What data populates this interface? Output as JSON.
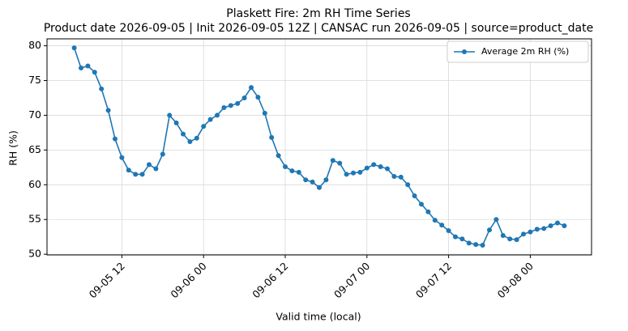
{
  "chart_data": {
    "type": "line",
    "title": "Plaskett Fire: 2m RH Time Series",
    "subtitle": "Product date 2026-09-05 | Init 2026-09-05 12Z | CANSAC run 2026-09-05 | source=product_date",
    "x_label": "Valid time (local)",
    "y_label": "RH (%)",
    "x": [
      "09-05 05",
      "09-05 06",
      "09-05 07",
      "09-05 08",
      "09-05 09",
      "09-05 10",
      "09-05 11",
      "09-05 12",
      "09-05 13",
      "09-05 14",
      "09-05 15",
      "09-05 16",
      "09-05 17",
      "09-05 18",
      "09-05 19",
      "09-05 20",
      "09-05 21",
      "09-05 22",
      "09-05 23",
      "09-06 00",
      "09-06 01",
      "09-06 02",
      "09-06 03",
      "09-06 04",
      "09-06 05",
      "09-06 06",
      "09-06 07",
      "09-06 08",
      "09-06 09",
      "09-06 10",
      "09-06 11",
      "09-06 12",
      "09-06 13",
      "09-06 14",
      "09-06 15",
      "09-06 16",
      "09-06 17",
      "09-06 18",
      "09-06 19",
      "09-06 20",
      "09-06 21",
      "09-06 22",
      "09-06 23",
      "09-07 00",
      "09-07 01",
      "09-07 02",
      "09-07 03",
      "09-07 04",
      "09-07 05",
      "09-07 06",
      "09-07 07",
      "09-07 08",
      "09-07 09",
      "09-07 10",
      "09-07 11",
      "09-07 12",
      "09-07 13",
      "09-07 14",
      "09-07 15",
      "09-07 16",
      "09-07 17",
      "09-07 18",
      "09-07 19",
      "09-07 20",
      "09-07 21",
      "09-07 22",
      "09-07 23",
      "09-08 00",
      "09-08 01",
      "09-08 02",
      "09-08 03",
      "09-08 04",
      "09-08 05"
    ],
    "series": [
      {
        "name": "Average 2m RH (%)",
        "color": "#1f77b4",
        "values": [
          79.7,
          76.8,
          77.1,
          76.2,
          73.8,
          70.7,
          66.6,
          63.9,
          62.1,
          61.5,
          61.5,
          62.9,
          62.3,
          64.4,
          70.0,
          68.9,
          67.3,
          66.2,
          66.7,
          68.4,
          69.4,
          70.0,
          71.1,
          71.4,
          71.7,
          72.5,
          74.0,
          72.6,
          70.3,
          66.8,
          64.2,
          62.6,
          62.0,
          61.8,
          60.7,
          60.4,
          59.6,
          60.7,
          63.5,
          63.1,
          61.5,
          61.7,
          61.8,
          62.4,
          62.9,
          62.6,
          62.3,
          61.2,
          61.1,
          60.0,
          58.4,
          57.2,
          56.1,
          54.9,
          54.2,
          53.4,
          52.5,
          52.2,
          51.6,
          51.4,
          51.3,
          53.5,
          55.0,
          52.7,
          52.2,
          52.1,
          52.9,
          53.2,
          53.6,
          53.7,
          54.1,
          54.5,
          54.1
        ]
      }
    ],
    "xlim": [
      "09-05 01",
      "09-08 09"
    ],
    "xticks": [
      "09-05 12",
      "09-06 00",
      "09-06 12",
      "09-07 00",
      "09-07 12",
      "09-08 00"
    ],
    "ylim": [
      49.9,
      81.0
    ],
    "yticks": [
      50,
      55,
      60,
      65,
      70,
      75,
      80
    ],
    "grid": true,
    "legend": "upper right"
  }
}
